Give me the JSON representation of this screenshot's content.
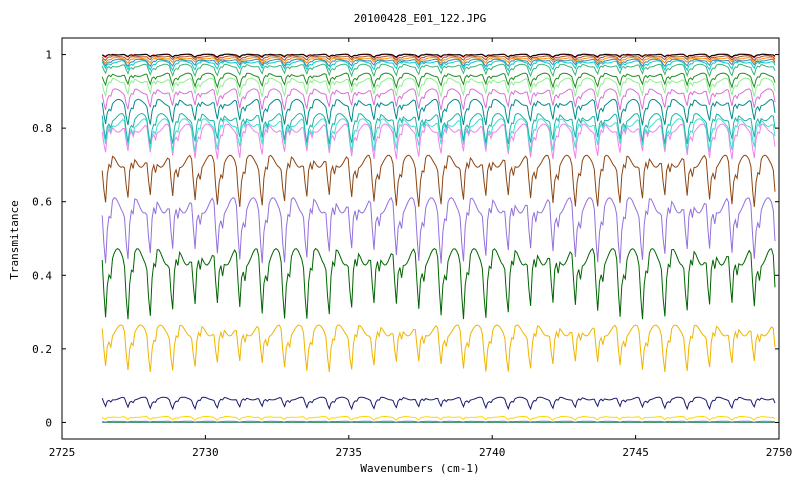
{
  "chart_data": {
    "type": "line",
    "title": "20100428_E01_122.JPG",
    "xlabel": "Wavenumbers (cm-1)",
    "ylabel": "Transmitance",
    "xlim": [
      2725,
      2750
    ],
    "ylim": [
      -0.045,
      1.045
    ],
    "x_data_range": [
      2726.4,
      2749.9
    ],
    "x_ticks": [
      "2725",
      "2730",
      "2735",
      "2740",
      "2745",
      "2750"
    ],
    "y_ticks": [
      "0",
      "0.2",
      "0.4",
      "0.6",
      "0.8",
      "1"
    ],
    "grid": false,
    "legend": "none",
    "line_period_cm1": 0.78,
    "series": [
      {
        "color": "#2e8b57",
        "base": 0.0,
        "depth": 0.0
      },
      {
        "color": "#7b68ee",
        "base": 0.003,
        "depth": 0.002
      },
      {
        "color": "#ffd700",
        "base": 0.015,
        "depth": 0.008
      },
      {
        "color": "#191970",
        "base": 0.065,
        "depth": 0.025
      },
      {
        "color": "#f0b400",
        "base": 0.25,
        "depth": 0.1
      },
      {
        "color": "#006400",
        "base": 0.45,
        "depth": 0.15
      },
      {
        "color": "#9370db",
        "base": 0.59,
        "depth": 0.14
      },
      {
        "color": "#8b4513",
        "base": 0.71,
        "depth": 0.11
      },
      {
        "color": "#ee82ee",
        "base": 0.8,
        "depth": 0.075
      },
      {
        "color": "#40e0d0",
        "base": 0.815,
        "depth": 0.07
      },
      {
        "color": "#20b2aa",
        "base": 0.83,
        "depth": 0.065
      },
      {
        "color": "#008b8b",
        "base": 0.87,
        "depth": 0.055
      },
      {
        "color": "#da70d6",
        "base": 0.9,
        "depth": 0.045
      },
      {
        "color": "#90ee90",
        "base": 0.93,
        "depth": 0.04
      },
      {
        "color": "#228b22",
        "base": 0.945,
        "depth": 0.03
      },
      {
        "color": "#3cb371",
        "base": 0.97,
        "depth": 0.025
      },
      {
        "color": "#00ced1",
        "base": 0.98,
        "depth": 0.02
      },
      {
        "color": "#4682b4",
        "base": 0.985,
        "depth": 0.015
      },
      {
        "color": "#ff8c00",
        "base": 0.99,
        "depth": 0.012
      },
      {
        "color": "#a0522d",
        "base": 0.995,
        "depth": 0.01
      },
      {
        "color": "#ff0000",
        "base": 1.0,
        "depth": 0.008
      },
      {
        "color": "#000000",
        "base": 1.0,
        "depth": 0.006
      }
    ]
  }
}
